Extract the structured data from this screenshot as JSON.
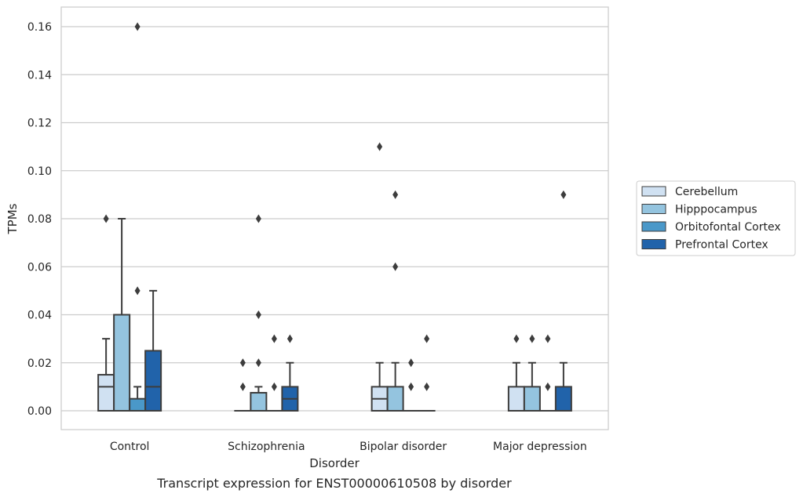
{
  "chart_data": {
    "type": "box",
    "title": "",
    "caption": "Transcript expression for ENST00000610508 by disorder",
    "xlabel": "Disorder",
    "ylabel": "TPMs",
    "ylim": [
      -0.008,
      0.168
    ],
    "yticks": [
      0.0,
      0.02,
      0.04,
      0.06,
      0.08,
      0.1,
      0.12,
      0.14,
      0.16
    ],
    "ytick_labels": [
      "0.00",
      "0.02",
      "0.04",
      "0.06",
      "0.08",
      "0.10",
      "0.12",
      "0.14",
      "0.16"
    ],
    "grid": "horizontal",
    "legend_position": "right",
    "categories": [
      "Control",
      "Schizophrenia",
      "Bipolar disorder",
      "Major depression"
    ],
    "series": [
      {
        "name": "Cerebellum",
        "color": "#d0e1f2",
        "boxes": [
          {
            "q1": 0.0,
            "median": 0.01,
            "q3": 0.015,
            "whisker_low": 0.0,
            "whisker_high": 0.03,
            "outliers": [
              0.08
            ]
          },
          {
            "q1": 0.0,
            "median": 0.0,
            "q3": 0.0,
            "whisker_low": 0.0,
            "whisker_high": 0.0,
            "outliers": [
              0.01,
              0.02
            ]
          },
          {
            "q1": 0.0,
            "median": 0.005,
            "q3": 0.01,
            "whisker_low": 0.0,
            "whisker_high": 0.02,
            "outliers": [
              0.11
            ]
          },
          {
            "q1": 0.0,
            "median": 0.0,
            "q3": 0.01,
            "whisker_low": 0.0,
            "whisker_high": 0.02,
            "outliers": [
              0.03
            ]
          }
        ]
      },
      {
        "name": "Hipppocampus",
        "color": "#94c4df",
        "boxes": [
          {
            "q1": 0.0,
            "median": 0.0,
            "q3": 0.04,
            "whisker_low": 0.0,
            "whisker_high": 0.08,
            "outliers": []
          },
          {
            "q1": 0.0,
            "median": 0.0,
            "q3": 0.0075,
            "whisker_low": 0.0,
            "whisker_high": 0.01,
            "outliers": [
              0.02,
              0.04,
              0.08
            ]
          },
          {
            "q1": 0.0,
            "median": 0.0,
            "q3": 0.01,
            "whisker_low": 0.0,
            "whisker_high": 0.02,
            "outliers": [
              0.06,
              0.09
            ]
          },
          {
            "q1": 0.0,
            "median": 0.0,
            "q3": 0.01,
            "whisker_low": 0.0,
            "whisker_high": 0.02,
            "outliers": [
              0.03
            ]
          }
        ]
      },
      {
        "name": "Orbitofontal Cortex",
        "color": "#4a98c9",
        "boxes": [
          {
            "q1": 0.0,
            "median": 0.0,
            "q3": 0.005,
            "whisker_low": 0.0,
            "whisker_high": 0.01,
            "outliers": [
              0.05,
              0.16
            ]
          },
          {
            "q1": 0.0,
            "median": 0.0,
            "q3": 0.0,
            "whisker_low": 0.0,
            "whisker_high": 0.0,
            "outliers": [
              0.01,
              0.03
            ]
          },
          {
            "q1": 0.0,
            "median": 0.0,
            "q3": 0.0,
            "whisker_low": 0.0,
            "whisker_high": 0.0,
            "outliers": [
              0.01,
              0.02
            ]
          },
          {
            "q1": 0.0,
            "median": 0.0,
            "q3": 0.0,
            "whisker_low": 0.0,
            "whisker_high": 0.0,
            "outliers": [
              0.01,
              0.03
            ]
          }
        ]
      },
      {
        "name": "Prefrontal Cortex",
        "color": "#2163aa",
        "boxes": [
          {
            "q1": 0.0,
            "median": 0.01,
            "q3": 0.025,
            "whisker_low": 0.0,
            "whisker_high": 0.05,
            "outliers": []
          },
          {
            "q1": 0.0,
            "median": 0.005,
            "q3": 0.01,
            "whisker_low": 0.0,
            "whisker_high": 0.02,
            "outliers": [
              0.03
            ]
          },
          {
            "q1": 0.0,
            "median": 0.0,
            "q3": 0.0,
            "whisker_low": 0.0,
            "whisker_high": 0.0,
            "outliers": [
              0.01,
              0.03
            ]
          },
          {
            "q1": 0.0,
            "median": 0.0,
            "q3": 0.01,
            "whisker_low": 0.0,
            "whisker_high": 0.02,
            "outliers": [
              0.09
            ]
          }
        ]
      }
    ]
  }
}
